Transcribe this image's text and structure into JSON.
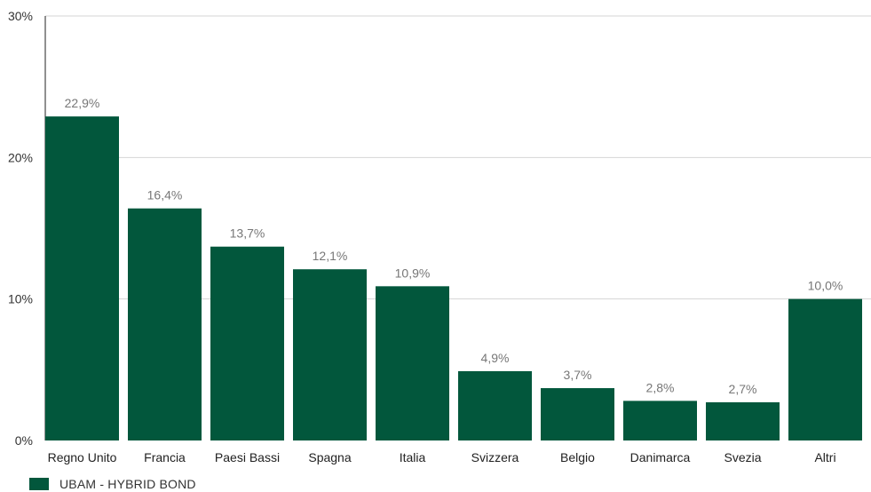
{
  "chart_data": {
    "type": "bar",
    "categories": [
      "Regno Unito",
      "Francia",
      "Paesi Bassi",
      "Spagna",
      "Italia",
      "Svizzera",
      "Belgio",
      "Danimarca",
      "Svezia",
      "Altri"
    ],
    "series": [
      {
        "name": "UBAM - HYBRID BOND",
        "values": [
          22.9,
          16.4,
          13.7,
          12.1,
          10.9,
          4.9,
          3.7,
          2.8,
          2.7,
          10.0
        ],
        "data_labels": [
          "22,9%",
          "16,4%",
          "13,7%",
          "12,1%",
          "10,9%",
          "4,9%",
          "3,7%",
          "2,8%",
          "2,7%",
          "10,0%"
        ],
        "color": "#02573c"
      }
    ],
    "ylim": [
      0,
      30
    ],
    "yticks": [
      0,
      10,
      20,
      30
    ],
    "ytick_labels": [
      "0%",
      "10%",
      "20%",
      "30%"
    ],
    "grid": true,
    "legend_position": "bottom-left"
  },
  "colors": {
    "bar": "#02573c",
    "grid": "#d4d4d4",
    "axis": "#222222"
  }
}
